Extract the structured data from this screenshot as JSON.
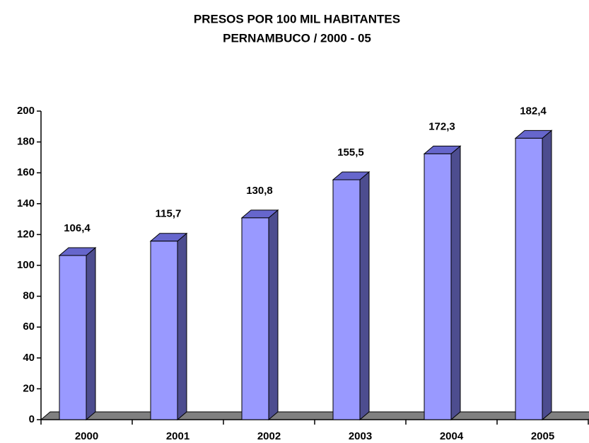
{
  "chart_data": {
    "type": "bar3d",
    "title": "PRESOS POR 100 MIL HABITANTES",
    "subtitle": "PERNAMBUCO / 2000 - 05",
    "categories": [
      "2000",
      "2001",
      "2002",
      "2003",
      "2004",
      "2005"
    ],
    "values": [
      106.4,
      115.7,
      130.8,
      155.5,
      172.3,
      182.4
    ],
    "value_labels": [
      "106,4",
      "115,7",
      "130,8",
      "155,5",
      "172,3",
      "182,4"
    ],
    "color": "#9999ff",
    "ylim": [
      0,
      200
    ],
    "yticks": [
      0,
      20,
      40,
      60,
      80,
      100,
      120,
      140,
      160,
      180,
      200
    ]
  }
}
